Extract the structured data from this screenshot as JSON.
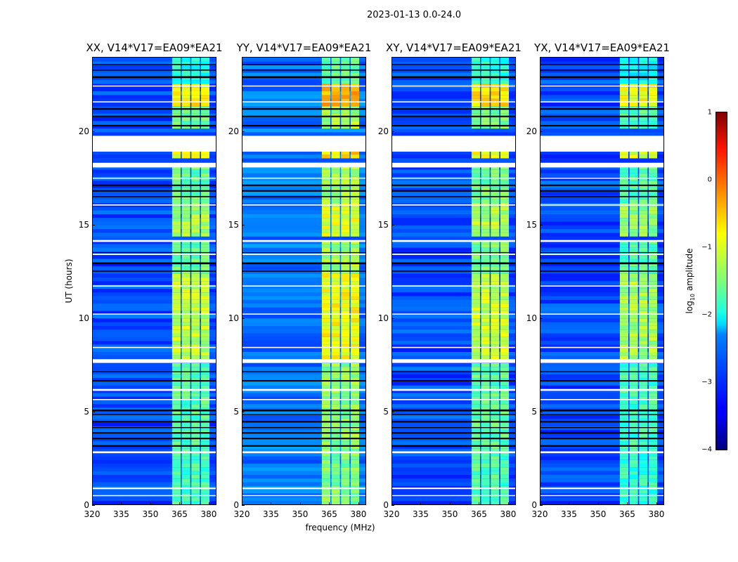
{
  "suptitle": "2023-01-13 0.0-24.0",
  "chart_data": {
    "type": "heatmap",
    "xlabel": "frequency (MHz)",
    "ylabel": "UT (hours)",
    "xlim": [
      320,
      384
    ],
    "ylim": [
      0,
      24
    ],
    "xticks": [
      320,
      335,
      350,
      365,
      380
    ],
    "yticks": [
      0,
      5,
      10,
      15,
      20
    ],
    "background_level": -3.0,
    "band_freq_range": [
      361,
      381
    ],
    "band_column_gaps_mhz": [
      366,
      371,
      376
    ],
    "band_segments": [
      {
        "t": [
          0,
          3
        ],
        "level": -1.8
      },
      {
        "t": [
          3,
          7.5
        ],
        "level": -1.7
      },
      {
        "t": [
          7.8,
          12.3
        ],
        "level": -1.2
      },
      {
        "t": [
          12.3,
          14.1
        ],
        "level": -1.6
      },
      {
        "t": [
          14.3,
          16.1
        ],
        "level": -1.3
      },
      {
        "t": [
          16.1,
          18.1
        ],
        "level": -1.6
      },
      {
        "t": [
          18.4,
          18.95
        ],
        "level": -1.0
      },
      {
        "t": [
          20,
          21.2
        ],
        "level": -1.6
      },
      {
        "t": [
          21.3,
          22.5
        ],
        "level": -0.8
      },
      {
        "t": [
          22.5,
          24
        ],
        "level": -2.0
      }
    ],
    "flagged_hours": [
      [
        18.95,
        19.8
      ],
      [
        18.1,
        18.35
      ],
      [
        7.6,
        7.8
      ],
      [
        16.05,
        16.12
      ],
      [
        14.1,
        14.2
      ],
      [
        13.4,
        13.47
      ],
      [
        11.7,
        11.76
      ],
      [
        10.2,
        10.25
      ],
      [
        8.4,
        8.46
      ],
      [
        6.1,
        6.2
      ],
      [
        5.6,
        5.66
      ],
      [
        2.75,
        2.85
      ],
      [
        0.82,
        0.9
      ],
      [
        0.45,
        0.5
      ],
      [
        22.45,
        22.5
      ],
      [
        21.6,
        21.65
      ],
      [
        17.5,
        17.55
      ]
    ],
    "blank_rows_hours": [
      [
        3.1,
        3.18
      ],
      [
        3.5,
        3.58
      ],
      [
        3.8,
        3.88
      ],
      [
        4.1,
        4.15
      ],
      [
        4.4,
        4.48
      ],
      [
        4.8,
        4.85
      ],
      [
        5.0,
        5.1
      ],
      [
        6.6,
        6.68
      ],
      [
        7.1,
        7.15
      ],
      [
        12.5,
        12.56
      ],
      [
        12.9,
        13.0
      ],
      [
        13.5,
        13.55
      ],
      [
        16.5,
        16.56
      ],
      [
        16.8,
        16.88
      ],
      [
        17.1,
        17.18
      ],
      [
        20.3,
        20.38
      ],
      [
        20.8,
        20.88
      ],
      [
        21.2,
        21.28
      ],
      [
        22.9,
        23.0
      ],
      [
        23.3,
        23.36
      ],
      [
        23.6,
        23.66
      ]
    ],
    "panels": [
      {
        "title": "XX, V14*V17=EA09*EA21",
        "band_offset": 0.0,
        "bg_offset": 0.0
      },
      {
        "title": "YY, V14*V17=EA09*EA21",
        "band_offset": 0.3,
        "bg_offset": 0.2
      },
      {
        "title": "XY, V14*V17=EA09*EA21",
        "band_offset": 0.05,
        "bg_offset": 0.0
      },
      {
        "title": "YX, V14*V17=EA09*EA21",
        "band_offset": -0.1,
        "bg_offset": 0.0
      }
    ],
    "colorbar": {
      "label": "log10 amplitude",
      "label_main": "log",
      "label_sub": "10",
      "label_rest": " amplitude",
      "range": [
        -4,
        1
      ],
      "ticks": [
        "1",
        "0",
        "−1",
        "−2",
        "−3",
        "−4"
      ],
      "colormap": "jet"
    }
  }
}
